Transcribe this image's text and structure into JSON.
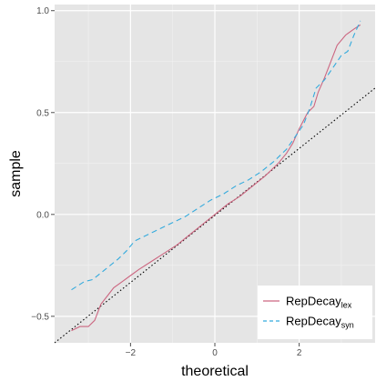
{
  "chart_data": {
    "type": "line",
    "xlabel": "theoretical",
    "ylabel": "sample",
    "xlim": [
      -3.8,
      3.8
    ],
    "ylim": [
      -0.63,
      1.03
    ],
    "x_ticks": [
      -2,
      0,
      2
    ],
    "x_tick_labels": [
      "−2",
      "0",
      "2"
    ],
    "y_ticks": [
      -0.5,
      0.0,
      0.5,
      1.0
    ],
    "y_tick_labels": [
      "−0.5",
      "0.0",
      "0.5",
      "1.0"
    ],
    "grid": true,
    "legend_position": "bottom-right",
    "reference_line": {
      "style": "dotted",
      "color": "#000000",
      "points": [
        [
          -3.8,
          -0.63
        ],
        [
          3.8,
          0.62
        ]
      ]
    },
    "series": [
      {
        "name": "RepDecay",
        "name_sub": "lex",
        "color": "#cc6680",
        "dash": "solid",
        "points": [
          [
            -3.4,
            -0.57
          ],
          [
            -3.2,
            -0.55
          ],
          [
            -3.0,
            -0.55
          ],
          [
            -2.85,
            -0.52
          ],
          [
            -2.7,
            -0.44
          ],
          [
            -2.55,
            -0.4
          ],
          [
            -2.4,
            -0.36
          ],
          [
            -2.2,
            -0.33
          ],
          [
            -2.0,
            -0.3
          ],
          [
            -1.8,
            -0.27
          ],
          [
            -1.5,
            -0.23
          ],
          [
            -1.2,
            -0.19
          ],
          [
            -0.9,
            -0.15
          ],
          [
            -0.6,
            -0.1
          ],
          [
            -0.3,
            -0.05
          ],
          [
            0.0,
            0.0
          ],
          [
            0.3,
            0.05
          ],
          [
            0.6,
            0.09
          ],
          [
            0.9,
            0.14
          ],
          [
            1.2,
            0.19
          ],
          [
            1.5,
            0.25
          ],
          [
            1.7,
            0.3
          ],
          [
            1.85,
            0.35
          ],
          [
            2.0,
            0.42
          ],
          [
            2.2,
            0.5
          ],
          [
            2.35,
            0.53
          ],
          [
            2.45,
            0.6
          ],
          [
            2.6,
            0.67
          ],
          [
            2.75,
            0.75
          ],
          [
            2.9,
            0.83
          ],
          [
            3.1,
            0.88
          ],
          [
            3.3,
            0.91
          ],
          [
            3.45,
            0.93
          ]
        ]
      },
      {
        "name": "RepDecay",
        "name_sub": "syn",
        "color": "#33aadd",
        "dash": "6,4",
        "points": [
          [
            -3.4,
            -0.37
          ],
          [
            -3.1,
            -0.33
          ],
          [
            -2.9,
            -0.32
          ],
          [
            -2.6,
            -0.27
          ],
          [
            -2.3,
            -0.22
          ],
          [
            -2.1,
            -0.18
          ],
          [
            -1.9,
            -0.13
          ],
          [
            -1.6,
            -0.1
          ],
          [
            -1.3,
            -0.07
          ],
          [
            -1.0,
            -0.04
          ],
          [
            -0.7,
            -0.01
          ],
          [
            -0.4,
            0.03
          ],
          [
            -0.1,
            0.07
          ],
          [
            0.2,
            0.1
          ],
          [
            0.5,
            0.14
          ],
          [
            0.8,
            0.17
          ],
          [
            1.1,
            0.21
          ],
          [
            1.4,
            0.26
          ],
          [
            1.7,
            0.32
          ],
          [
            1.9,
            0.38
          ],
          [
            2.1,
            0.44
          ],
          [
            2.25,
            0.52
          ],
          [
            2.4,
            0.62
          ],
          [
            2.6,
            0.66
          ],
          [
            2.8,
            0.72
          ],
          [
            3.0,
            0.78
          ],
          [
            3.15,
            0.8
          ],
          [
            3.3,
            0.88
          ],
          [
            3.45,
            0.95
          ]
        ]
      }
    ]
  }
}
